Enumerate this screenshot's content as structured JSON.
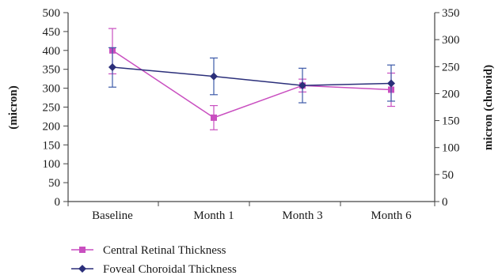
{
  "chart_data": {
    "type": "line",
    "categories": [
      "Baseline",
      "Month 1",
      "Month 3",
      "Month 6"
    ],
    "ylabel_left": "(micron)",
    "ylabel_right": "micron (choroid)",
    "ylim_left": [
      0,
      500
    ],
    "yticks_left": [
      0,
      50,
      100,
      150,
      200,
      250,
      300,
      350,
      400,
      450,
      500
    ],
    "ylim_right": [
      0,
      350
    ],
    "yticks_right": [
      0,
      50,
      100,
      150,
      200,
      250,
      300,
      350
    ],
    "grid": false,
    "legend_position": "bottom-left",
    "series": [
      {
        "name": "Central Retinal Thickness",
        "axis": "left",
        "color": "#c94fc0",
        "marker": "square",
        "values": [
          400,
          222,
          307,
          296
        ],
        "error_low": [
          338,
          190,
          290,
          252
        ],
        "error_high": [
          458,
          254,
          324,
          340
        ]
      },
      {
        "name": "Foveal Choroidal Thickness",
        "axis": "right",
        "color": "#2b2f7a",
        "error_color": "#3d5aa8",
        "marker": "diamond",
        "values": [
          249,
          232,
          215,
          219
        ],
        "error_low": [
          212,
          198,
          183,
          186
        ],
        "error_high": [
          285,
          266,
          247,
          253
        ]
      }
    ]
  }
}
